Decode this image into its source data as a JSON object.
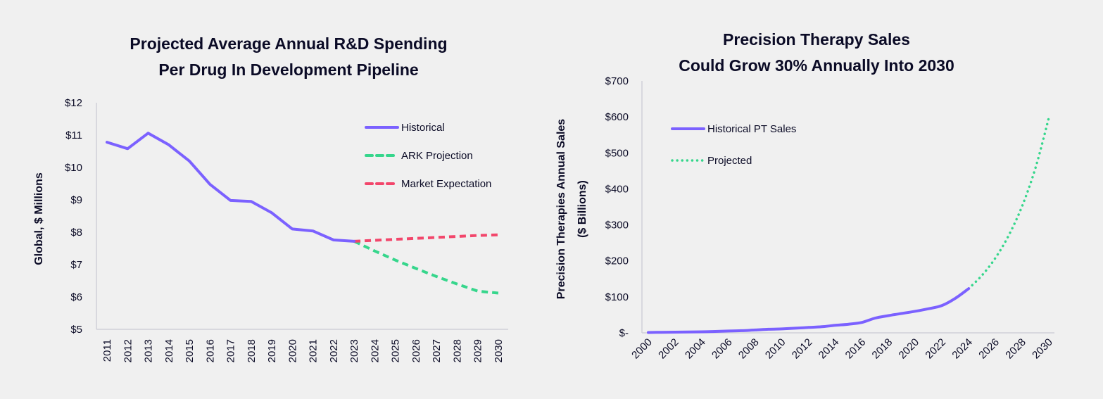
{
  "chart_data": [
    {
      "type": "line",
      "title": "Projected Average Annual R&D Spending Per Drug In Development Pipeline",
      "title_lines": [
        "Projected Average Annual R&D Spending",
        "Per Drug In Development Pipeline"
      ],
      "xlabel": "",
      "ylabel": "Global, $ Millions",
      "x": [
        2011,
        2012,
        2013,
        2014,
        2015,
        2016,
        2017,
        2018,
        2019,
        2020,
        2021,
        2022,
        2023,
        2024,
        2025,
        2026,
        2027,
        2028,
        2029,
        2030
      ],
      "x_tick_labels": [
        "2011",
        "2012",
        "2013",
        "2014",
        "2015",
        "2016",
        "2017",
        "2018",
        "2019",
        "2020",
        "2021",
        "2022",
        "2023",
        "2024",
        "2025",
        "2026",
        "2027",
        "2028",
        "2029",
        "2030"
      ],
      "ylim": [
        5,
        12
      ],
      "y_ticks": [
        5,
        6,
        7,
        8,
        9,
        10,
        11,
        12
      ],
      "y_tick_labels": [
        "$5",
        "$6",
        "$7",
        "$8",
        "$9",
        "$10",
        "$11",
        "$12"
      ],
      "grid": false,
      "legend_position": "top-right",
      "series": [
        {
          "name": "Historical",
          "color": "#7b61ff",
          "style": "solid",
          "x": [
            2011,
            2012,
            2013,
            2014,
            2015,
            2016,
            2017,
            2018,
            2019,
            2020,
            2021,
            2022,
            2023
          ],
          "values": [
            10.78,
            10.58,
            11.06,
            10.7,
            10.2,
            9.48,
            8.98,
            8.95,
            8.6,
            8.1,
            8.04,
            7.76,
            7.72
          ]
        },
        {
          "name": "ARK Projection",
          "color": "#36d68c",
          "style": "dashed",
          "x": [
            2023,
            2024,
            2025,
            2026,
            2027,
            2028,
            2029,
            2030
          ],
          "values": [
            7.72,
            7.42,
            7.14,
            6.88,
            6.63,
            6.4,
            6.18,
            6.12
          ]
        },
        {
          "name": "Market Expectation",
          "color": "#f2466b",
          "style": "dashed",
          "x": [
            2023,
            2024,
            2025,
            2026,
            2027,
            2028,
            2029,
            2030
          ],
          "values": [
            7.72,
            7.75,
            7.78,
            7.81,
            7.84,
            7.87,
            7.9,
            7.92
          ]
        }
      ]
    },
    {
      "type": "line",
      "title": "Precision Therapy Sales Could Grow 30% Annually Into 2030",
      "title_lines": [
        "Precision Therapy Sales",
        "Could Grow 30% Annually Into 2030"
      ],
      "xlabel": "",
      "ylabel": "Precision Therapies Annual  Sales ($ Billions)",
      "ylabel_lines": [
        "Precision Therapies Annual  Sales",
        "($ Billions)"
      ],
      "x_tick_labels": [
        "2000",
        "2002",
        "2004",
        "2006",
        "2008",
        "2010",
        "2012",
        "2014",
        "2016",
        "2018",
        "2020",
        "2022",
        "2024",
        "2026",
        "2028",
        "2030"
      ],
      "xlim": [
        2000,
        2030
      ],
      "ylim": [
        0,
        700
      ],
      "y_ticks": [
        0,
        100,
        200,
        300,
        400,
        500,
        600,
        700
      ],
      "y_tick_labels": [
        "$-",
        "$100",
        "$200",
        "$300",
        "$400",
        "$500",
        "$600",
        "$700"
      ],
      "grid": false,
      "legend_position": "top-left",
      "series": [
        {
          "name": "Historical PT Sales",
          "color": "#7b61ff",
          "style": "solid",
          "x": [
            2000,
            2001,
            2002,
            2003,
            2004,
            2005,
            2006,
            2007,
            2008,
            2009,
            2010,
            2011,
            2012,
            2013,
            2014,
            2015,
            2016,
            2017,
            2018,
            2019,
            2020,
            2021,
            2022,
            2023,
            2024
          ],
          "values": [
            1,
            1.5,
            2,
            2.5,
            3,
            4,
            5,
            6,
            8,
            10,
            11,
            13,
            15,
            17,
            21,
            24,
            29,
            41,
            48,
            54,
            60,
            67,
            76,
            96,
            123
          ]
        },
        {
          "name": "Projected",
          "color": "#36d68c",
          "style": "dotted",
          "x": [
            2024,
            2025,
            2026,
            2027,
            2028,
            2029,
            2030
          ],
          "values": [
            123,
            160,
            208,
            271,
            352,
            458,
            597
          ]
        }
      ]
    }
  ]
}
